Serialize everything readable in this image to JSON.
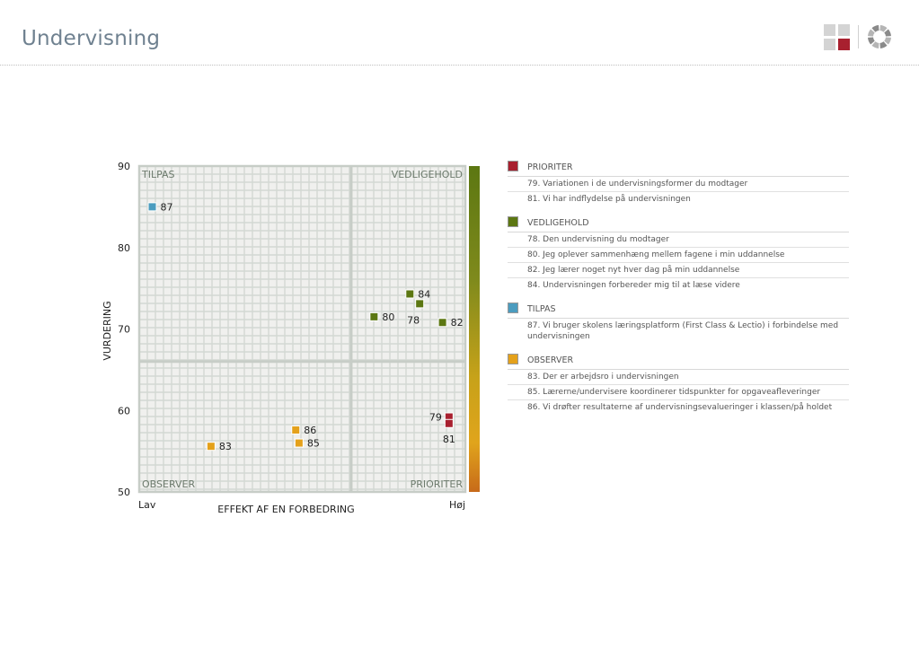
{
  "header": {
    "title": "Undervisning"
  },
  "chart_data": {
    "type": "scatter",
    "xlabel": "EFFEKT AF EN FORBEDRING",
    "ylabel": "VURDERING",
    "x_low_label": "Lav",
    "x_high_label": "Høj",
    "xlim": [
      0,
      100
    ],
    "ylim": [
      50,
      90
    ],
    "yticks": [
      50,
      60,
      70,
      80,
      90
    ],
    "divider": {
      "x": 65,
      "y": 66
    },
    "quadrants": {
      "top_left": "TILPAS",
      "top_right": "VEDLIGEHOLD",
      "bottom_left": "OBSERVER",
      "bottom_right": "PRIORITER"
    },
    "colors": {
      "TILPAS": "#4b9cbf",
      "VEDLIGEHOLD": "#5c7712",
      "OBSERVER": "#e4a11b",
      "PRIORITER": "#a8202f",
      "grid_bg": "#f0f0ee",
      "grid_line": "#d3d8d3",
      "divider": "#c7cdc7"
    },
    "points": [
      {
        "id": "87",
        "group": "TILPAS",
        "x": 4,
        "y": 85.0,
        "label_side": "right"
      },
      {
        "id": "84",
        "group": "VEDLIGEHOLD",
        "x": 83,
        "y": 74.3,
        "label_side": "right"
      },
      {
        "id": "78",
        "group": "VEDLIGEHOLD",
        "x": 86,
        "y": 73.1,
        "label_side": "below-left"
      },
      {
        "id": "80",
        "group": "VEDLIGEHOLD",
        "x": 72,
        "y": 71.5,
        "label_side": "right"
      },
      {
        "id": "82",
        "group": "VEDLIGEHOLD",
        "x": 93,
        "y": 70.8,
        "label_side": "right"
      },
      {
        "id": "79",
        "group": "PRIORITER",
        "x": 95,
        "y": 59.2,
        "label_side": "left"
      },
      {
        "id": "81",
        "group": "PRIORITER",
        "x": 95,
        "y": 58.4,
        "label_side": "below"
      },
      {
        "id": "86",
        "group": "OBSERVER",
        "x": 48,
        "y": 57.6,
        "label_side": "right"
      },
      {
        "id": "85",
        "group": "OBSERVER",
        "x": 49,
        "y": 56.0,
        "label_side": "right"
      },
      {
        "id": "83",
        "group": "OBSERVER",
        "x": 22,
        "y": 55.6,
        "label_side": "right"
      }
    ]
  },
  "legend": {
    "groups": [
      {
        "name": "PRIORITER",
        "color": "#a8202f",
        "items": [
          "79. Variationen i de undervisningsformer du modtager",
          "81. Vi har indflydelse på undervisningen"
        ]
      },
      {
        "name": "VEDLIGEHOLD",
        "color": "#5c7712",
        "items": [
          "78. Den undervisning du modtager",
          "80. Jeg oplever sammenhæng mellem fagene i min uddannelse",
          "82. Jeg lærer noget nyt hver dag på min uddannelse",
          "84. Undervisningen forbereder mig til at læse videre"
        ]
      },
      {
        "name": "TILPAS",
        "color": "#4b9cbf",
        "items": [
          "87. Vi bruger skolens læringsplatform (First Class & Lectio) i forbindelse med undervisningen"
        ]
      },
      {
        "name": "OBSERVER",
        "color": "#e4a11b",
        "items": [
          "83. Der er arbejdsro i undervisningen",
          "85. Lærerne/undervisere koordinerer tidspunkter for opgaveafleveringer",
          "86. Vi drøfter resultaterne af undervisningsevalueringer i klassen/på holdet"
        ]
      }
    ]
  }
}
